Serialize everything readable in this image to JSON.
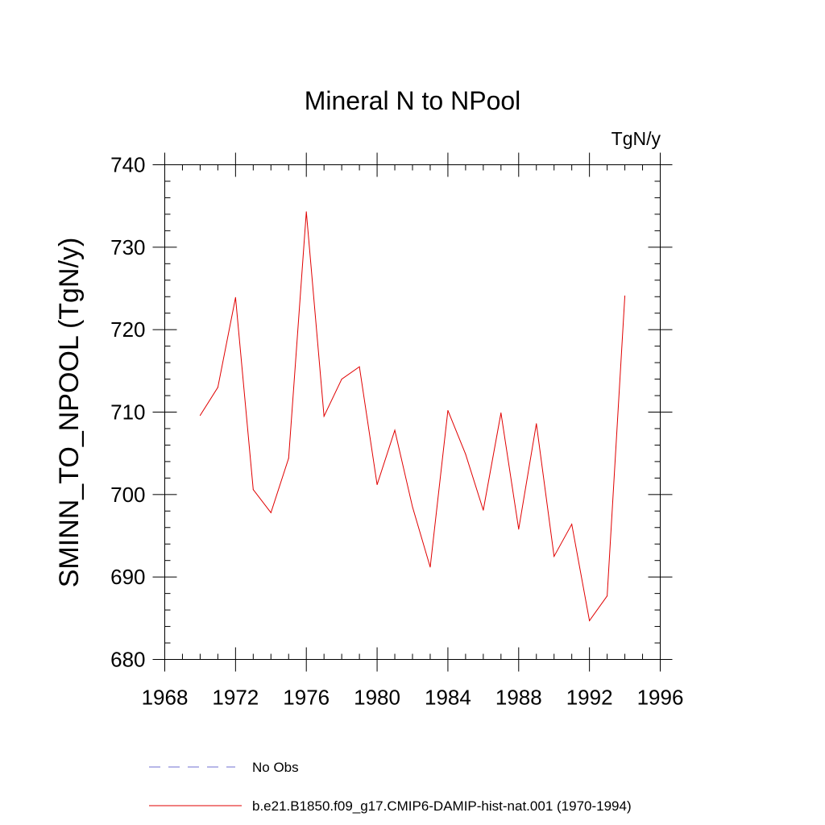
{
  "chart_data": {
    "type": "line",
    "title": "Mineral N to NPool",
    "units_label": "TgN/y",
    "xlabel": "",
    "ylabel": "SMINN_TO_NPOOL  (TgN/y)",
    "xlim": [
      1968,
      1996
    ],
    "ylim": [
      680,
      740
    ],
    "x_ticks": [
      1968,
      1972,
      1976,
      1980,
      1984,
      1988,
      1992,
      1996
    ],
    "y_ticks": [
      680,
      690,
      700,
      710,
      720,
      730,
      740
    ],
    "grid": false,
    "legend_position": "bottom",
    "series": [
      {
        "name": "No Obs",
        "color": "#6f6fd0",
        "style": "dashed",
        "x": [],
        "y": []
      },
      {
        "name": "b.e21.B1850.f09_g17.CMIP6-DAMIP-hist-nat.001 (1970-1994)",
        "color": "#e00000",
        "style": "solid",
        "x": [
          1970,
          1971,
          1972,
          1973,
          1974,
          1975,
          1976,
          1977,
          1978,
          1979,
          1980,
          1981,
          1982,
          1983,
          1984,
          1985,
          1986,
          1987,
          1988,
          1989,
          1990,
          1991,
          1992,
          1993,
          1994
        ],
        "y": [
          709.6,
          713.0,
          723.9,
          700.6,
          697.8,
          704.4,
          734.3,
          709.5,
          714.0,
          715.5,
          701.2,
          707.8,
          698.5,
          691.2,
          710.2,
          704.9,
          698.1,
          709.9,
          695.8,
          708.6,
          692.5,
          696.4,
          684.7,
          687.7,
          724.1
        ]
      }
    ]
  }
}
